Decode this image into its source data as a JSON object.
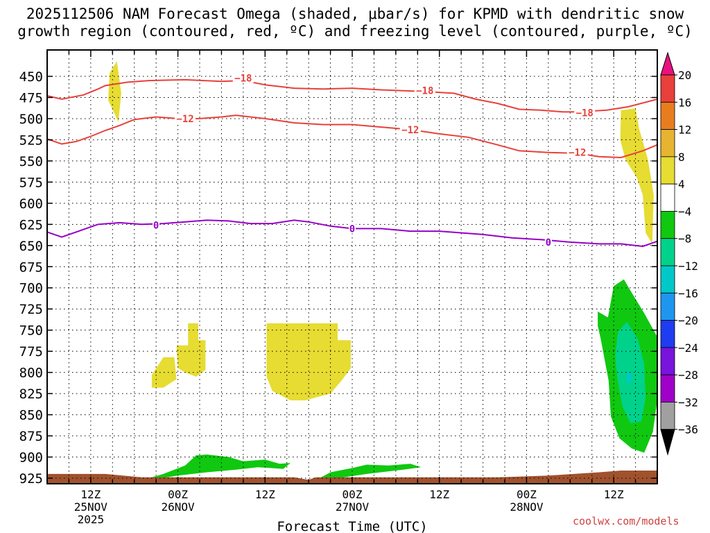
{
  "title_line1": "2025112506 NAM Forecast Omega (shaded, μbar/s) for KPMD with dendritic snow",
  "title_line2": "growth region (contoured, red, ºC) and freezing level (contoured, purple, ºC)",
  "watermark": "coolwx.com/models",
  "chart_data": {
    "type": "time-height cross section",
    "title": "2025112506 NAM Forecast Omega (shaded, μbar/s) for KPMD with dendritic snow growth region (contoured, red, ºC) and freezing level (contoured, purple, ºC)",
    "xlabel": "Forecast Time (UTC)",
    "ylabel": "",
    "x_range_hours": [
      6,
      90
    ],
    "y_levels": [
      450,
      475,
      500,
      525,
      550,
      575,
      600,
      625,
      650,
      675,
      700,
      725,
      750,
      775,
      800,
      825,
      850,
      875,
      900,
      925
    ],
    "x_ticks": [
      {
        "hour": 12,
        "label": "12Z",
        "sub": "25NOV",
        "sub2": "2025"
      },
      {
        "hour": 24,
        "label": "00Z",
        "sub": "26NOV",
        "sub2": ""
      },
      {
        "hour": 36,
        "label": "12Z",
        "sub": "",
        "sub2": ""
      },
      {
        "hour": 48,
        "label": "00Z",
        "sub": "27NOV",
        "sub2": ""
      },
      {
        "hour": 60,
        "label": "12Z",
        "sub": "",
        "sub2": ""
      },
      {
        "hour": 72,
        "label": "00Z",
        "sub": "28NOV",
        "sub2": ""
      },
      {
        "hour": 84,
        "label": "12Z",
        "sub": "",
        "sub2": ""
      }
    ],
    "colorbar": {
      "labels": [
        "20",
        "16",
        "12",
        "8",
        "4",
        "−4",
        "−8",
        "−12",
        "−16",
        "−20",
        "−24",
        "−28",
        "−32",
        "−36"
      ],
      "colors": [
        "#e8117f",
        "#e8403a",
        "#e87d20",
        "#e6b430",
        "#e6dc32",
        "#ffffff",
        "#10c810",
        "#00d28c",
        "#00c8c8",
        "#1e96f0",
        "#1e3cf0",
        "#7814dc",
        "#a000c8",
        "#a0a0a0",
        "#000000"
      ],
      "top_arrow_color": "#e8117f",
      "bottom_arrow_color": "#000000"
    },
    "contours": [
      {
        "name": "-18",
        "color": "#e8403a",
        "label": "−18",
        "label_points": [
          [
            33,
            452
          ],
          [
            58,
            467
          ],
          [
            80,
            493
          ]
        ],
        "points": [
          [
            6,
            473
          ],
          [
            8,
            477
          ],
          [
            11,
            472
          ],
          [
            13,
            465
          ],
          [
            14,
            461
          ],
          [
            17,
            457
          ],
          [
            20,
            455
          ],
          [
            25,
            454
          ],
          [
            30,
            456
          ],
          [
            33,
            455
          ],
          [
            36,
            460
          ],
          [
            40,
            464
          ],
          [
            44,
            465
          ],
          [
            48,
            464
          ],
          [
            52,
            466
          ],
          [
            58,
            468
          ],
          [
            62,
            470
          ],
          [
            65,
            477
          ],
          [
            68,
            482
          ],
          [
            71,
            489
          ],
          [
            74,
            490
          ],
          [
            77,
            492
          ],
          [
            79,
            492
          ],
          [
            83,
            490
          ],
          [
            86,
            486
          ],
          [
            90,
            477
          ]
        ]
      },
      {
        "name": "-12",
        "color": "#e8403a",
        "label": "−12",
        "label_points": [
          [
            25,
            500
          ],
          [
            56,
            513
          ],
          [
            79,
            540
          ]
        ],
        "points": [
          [
            6,
            524
          ],
          [
            8,
            530
          ],
          [
            10,
            527
          ],
          [
            12,
            521
          ],
          [
            14,
            514
          ],
          [
            16,
            508
          ],
          [
            18,
            501
          ],
          [
            21,
            498
          ],
          [
            24,
            500
          ],
          [
            27,
            500
          ],
          [
            30,
            498
          ],
          [
            32,
            496
          ],
          [
            36,
            500
          ],
          [
            40,
            505
          ],
          [
            44,
            507
          ],
          [
            48,
            507
          ],
          [
            52,
            510
          ],
          [
            56,
            513
          ],
          [
            60,
            518
          ],
          [
            64,
            522
          ],
          [
            68,
            531
          ],
          [
            71,
            538
          ],
          [
            75,
            540
          ],
          [
            79,
            541
          ],
          [
            82,
            545
          ],
          [
            85,
            546
          ],
          [
            88,
            538
          ],
          [
            90,
            531
          ]
        ]
      },
      {
        "name": "0",
        "color": "#9600c8",
        "label": "0",
        "label_points": [
          [
            21,
            626
          ],
          [
            48,
            630
          ],
          [
            75,
            646
          ]
        ],
        "points": [
          [
            6,
            634
          ],
          [
            8,
            640
          ],
          [
            10,
            634
          ],
          [
            13,
            625
          ],
          [
            16,
            623
          ],
          [
            19,
            625
          ],
          [
            22,
            624
          ],
          [
            25,
            622
          ],
          [
            28,
            620
          ],
          [
            31,
            621
          ],
          [
            34,
            624
          ],
          [
            37,
            624
          ],
          [
            40,
            620
          ],
          [
            42,
            622
          ],
          [
            45,
            627
          ],
          [
            48,
            630
          ],
          [
            52,
            630
          ],
          [
            56,
            633
          ],
          [
            60,
            633
          ],
          [
            63,
            635
          ],
          [
            66,
            637
          ],
          [
            70,
            641
          ],
          [
            74,
            643
          ],
          [
            78,
            646
          ],
          [
            82,
            648
          ],
          [
            85,
            648
          ],
          [
            88,
            651
          ],
          [
            90,
            645
          ]
        ]
      }
    ],
    "omega_regions": [
      {
        "name": "upper-left ascent",
        "value_range": [
          4,
          8
        ],
        "color": "#e6dc32",
        "points": [
          [
            14.6,
            446
          ],
          [
            15.6,
            432
          ],
          [
            16.2,
            470
          ],
          [
            15.8,
            504
          ],
          [
            14.4,
            478
          ]
        ]
      },
      {
        "name": "upper-right ascent",
        "value_range": [
          4,
          8
        ],
        "color": "#e6dc32",
        "points": [
          [
            85.0,
            490
          ],
          [
            87.0,
            488
          ],
          [
            87.5,
            512
          ],
          [
            88.7,
            548
          ],
          [
            89.5,
            590
          ],
          [
            89.3,
            648
          ],
          [
            88.4,
            635
          ],
          [
            88.0,
            590
          ],
          [
            87.2,
            570
          ],
          [
            85.6,
            548
          ],
          [
            84.9,
            525
          ]
        ]
      },
      {
        "name": "mid-left ascent 1",
        "value_range": [
          4,
          8
        ],
        "color": "#e6dc32",
        "points": [
          [
            20.4,
            803
          ],
          [
            22.0,
            782
          ],
          [
            23.5,
            782
          ],
          [
            23.8,
            808
          ],
          [
            22.0,
            818
          ],
          [
            20.4,
            818
          ]
        ]
      },
      {
        "name": "mid-left ascent 2",
        "value_range": [
          4,
          8
        ],
        "color": "#e6dc32",
        "points": [
          [
            23.8,
            768
          ],
          [
            25.4,
            768
          ],
          [
            25.4,
            742
          ],
          [
            26.8,
            742
          ],
          [
            26.8,
            762
          ],
          [
            27.8,
            762
          ],
          [
            27.8,
            797
          ],
          [
            26.5,
            805
          ],
          [
            25.0,
            800
          ],
          [
            24.0,
            795
          ]
        ]
      },
      {
        "name": "mid ascent",
        "value_range": [
          4,
          8
        ],
        "color": "#e6dc32",
        "points": [
          [
            36.2,
            742
          ],
          [
            46.0,
            742
          ],
          [
            46.0,
            762
          ],
          [
            47.8,
            762
          ],
          [
            47.8,
            795
          ],
          [
            46.5,
            810
          ],
          [
            45.0,
            825
          ],
          [
            41.5,
            833
          ],
          [
            39.5,
            833
          ],
          [
            37.0,
            822
          ],
          [
            36.2,
            805
          ]
        ]
      },
      {
        "name": "lower-right descent",
        "value_range": [
          -8,
          -4
        ],
        "color": "#10c810",
        "points": [
          [
            81.8,
            728
          ],
          [
            83.2,
            735
          ],
          [
            84.0,
            698
          ],
          [
            85.4,
            690
          ],
          [
            86.5,
            706
          ],
          [
            88.2,
            730
          ],
          [
            90.0,
            758
          ],
          [
            90.2,
            820
          ],
          [
            89.4,
            870
          ],
          [
            88.2,
            895
          ],
          [
            86.5,
            890
          ],
          [
            84.8,
            878
          ],
          [
            83.6,
            852
          ],
          [
            83.3,
            810
          ],
          [
            82.2,
            760
          ],
          [
            81.8,
            745
          ]
        ]
      },
      {
        "name": "lower-right descent core",
        "value_range": [
          -12,
          -8
        ],
        "color": "#00d28c",
        "points": [
          [
            84.6,
            752
          ],
          [
            85.8,
            740
          ],
          [
            87.3,
            760
          ],
          [
            88.2,
            790
          ],
          [
            88.4,
            830
          ],
          [
            87.8,
            858
          ],
          [
            86.3,
            860
          ],
          [
            85.2,
            840
          ],
          [
            84.5,
            808
          ],
          [
            84.2,
            780
          ]
        ]
      },
      {
        "name": "lower-right descent spot",
        "value_range": [
          -16,
          -12
        ],
        "color": "#00c8c8",
        "points": [
          [
            85.8,
            800
          ],
          [
            86.4,
            800
          ],
          [
            86.4,
            812
          ],
          [
            85.8,
            812
          ]
        ]
      },
      {
        "name": "low-level descent left",
        "value_range": [
          -8,
          -4
        ],
        "color": "#10c810",
        "points": [
          [
            20.0,
            925
          ],
          [
            22.0,
            920
          ],
          [
            25.0,
            910
          ],
          [
            26.5,
            898
          ],
          [
            28.0,
            897
          ],
          [
            31.0,
            900
          ],
          [
            33.0,
            905
          ],
          [
            36.0,
            903
          ],
          [
            38.0,
            908
          ],
          [
            39.5,
            907
          ],
          [
            38.5,
            914
          ],
          [
            35.0,
            912
          ],
          [
            32.0,
            915
          ],
          [
            28.0,
            918
          ],
          [
            24.0,
            922
          ],
          [
            21.0,
            926
          ]
        ]
      },
      {
        "name": "low-level descent right",
        "value_range": [
          -8,
          -4
        ],
        "color": "#10c810",
        "points": [
          [
            43.5,
            925
          ],
          [
            45.0,
            918
          ],
          [
            48.0,
            913
          ],
          [
            50.0,
            909
          ],
          [
            53.0,
            910
          ],
          [
            56.0,
            908
          ],
          [
            57.5,
            912
          ],
          [
            55.0,
            915
          ],
          [
            50.0,
            920
          ],
          [
            46.0,
            925
          ]
        ]
      }
    ],
    "terrain": {
      "color": "#a0522d",
      "base_hpa": 930,
      "points": [
        [
          6,
          920
        ],
        [
          14,
          920
        ],
        [
          19,
          924
        ],
        [
          40,
          924
        ],
        [
          42,
          927
        ],
        [
          43,
          924
        ],
        [
          68,
          924
        ],
        [
          75,
          922
        ],
        [
          82,
          918
        ],
        [
          85,
          916
        ],
        [
          90,
          916
        ]
      ]
    }
  }
}
